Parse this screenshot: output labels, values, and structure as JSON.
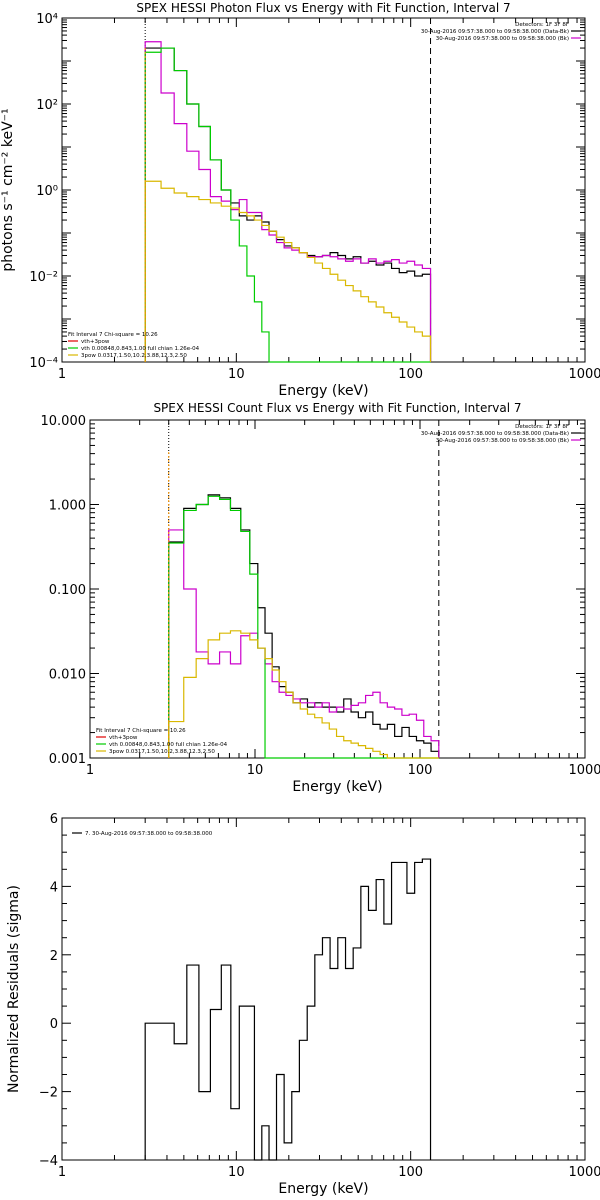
{
  "colors": {
    "black": "#000000",
    "red": "#e00000",
    "green": "#00cc00",
    "magenta": "#cc00cc",
    "yellow": "#d9b800",
    "orange_line": "#ff9900"
  },
  "chart_data": [
    {
      "type": "line",
      "title": "SPEX HESSI Photon Flux vs Energy with Fit Function, Interval 7",
      "xlabel": "Energy (keV)",
      "ylabel": "photons s⁻¹ cm⁻² keV⁻¹",
      "xscale": "log",
      "yscale": "log",
      "xlim": [
        1,
        1000
      ],
      "ylim": [
        0.0001,
        10000
      ],
      "xticks": [
        1,
        10,
        100,
        1000
      ],
      "xticklabels": [
        "1",
        "10",
        "100",
        "1000"
      ],
      "yticks": [
        0.0001,
        0.01,
        1,
        100,
        10000
      ],
      "yticklabels": [
        "10⁻⁴",
        "10⁻²",
        "10⁰",
        "10²",
        "10⁴"
      ],
      "vlines": [
        {
          "x": 3,
          "style": "dotted"
        },
        {
          "x": 130,
          "style": "dashed"
        }
      ],
      "legend_top": [
        "Detectors: 1F 3F 8F",
        "30-Aug-2016 09:57:38.000 to 09:58:38.000 (Data-Bk)",
        "30-Aug-2016 09:57:38.000 to 09:58:38.000 (Bk)"
      ],
      "legend_bottom": [
        "Fit Interval 7   Chi-square = 10.26",
        "vth+3pow",
        "vth 0.00848,0.843,1.00  full chian 1.26e-04",
        "3pow 0.0317,1.50,10.2,3.88,12.3,2.50"
      ],
      "edges": [
        3,
        3.7,
        4.4,
        5.2,
        6.1,
        7.1,
        8.2,
        9.3,
        10.4,
        11.5,
        12.7,
        14.0,
        15.4,
        17.0,
        18.8,
        20.8,
        23.0,
        25.5,
        28.2,
        31.2,
        34.5,
        38.2,
        42.3,
        46.8,
        51.8,
        57.3,
        63.4,
        70.2,
        77.7,
        86.0,
        95.2,
        105.4,
        116.7,
        130.0
      ],
      "series": [
        {
          "color_key": "black",
          "values": [
            2000,
            2000,
            600,
            100,
            30,
            5,
            1.0,
            0.5,
            0.25,
            0.2,
            0.25,
            0.18,
            0.11,
            0.07,
            0.05,
            0.045,
            0.035,
            0.03,
            0.028,
            0.03,
            0.035,
            0.03,
            0.025,
            0.028,
            0.02,
            0.022,
            0.018,
            0.02,
            0.015,
            0.012,
            0.013,
            0.01,
            0.011
          ]
        },
        {
          "color_key": "magenta",
          "values": [
            2800,
            180,
            35,
            8,
            3,
            0.7,
            0.55,
            0.35,
            0.6,
            0.3,
            0.3,
            0.12,
            0.09,
            0.06,
            0.045,
            0.04,
            0.035,
            0.028,
            0.028,
            0.03,
            0.028,
            0.025,
            0.022,
            0.025,
            0.02,
            0.025,
            0.02,
            0.022,
            0.024,
            0.02,
            0.022,
            0.018,
            0.015
          ]
        },
        {
          "color_key": "green",
          "values": [
            1600,
            2000,
            600,
            100,
            30,
            5,
            1.0,
            0.2,
            0.05,
            0.01,
            0.0025,
            0.0005,
            0.0001,
            0.0001,
            0.0001,
            0.0001,
            0.0001,
            0.0001,
            0.0001,
            0.0001,
            0.0001,
            0.0001,
            0.0001,
            0.0001,
            0.0001,
            0.0001,
            0.0001,
            0.0001,
            0.0001,
            0.0001,
            0.0001,
            0.0001,
            0.0001
          ]
        },
        {
          "color_key": "yellow",
          "values": [
            1.6,
            1.1,
            0.85,
            0.7,
            0.6,
            0.5,
            0.42,
            0.38,
            0.3,
            0.25,
            0.2,
            0.15,
            0.11,
            0.08,
            0.06,
            0.045,
            0.035,
            0.027,
            0.02,
            0.015,
            0.011,
            0.008,
            0.006,
            0.0045,
            0.0033,
            0.0025,
            0.0019,
            0.0014,
            0.0011,
            0.00085,
            0.00065,
            0.0005,
            0.0004
          ]
        }
      ]
    },
    {
      "type": "line",
      "title": "SPEX HESSI Count Flux vs Energy with Fit Function, Interval 7",
      "xlabel": "Energy (keV)",
      "ylabel": "",
      "xscale": "log",
      "yscale": "log",
      "xlim": [
        1,
        1000
      ],
      "ylim": [
        0.001,
        10
      ],
      "xticks": [
        1,
        10,
        100,
        1000
      ],
      "xticklabels": [
        "1",
        "10",
        "100",
        "1000"
      ],
      "yticks": [
        0.001,
        0.01,
        0.1,
        1,
        10
      ],
      "yticklabels": [
        "0.001",
        "0.010",
        "0.100",
        "1.000",
        "10.000"
      ],
      "vlines": [
        {
          "x": 3,
          "style": "dotted"
        },
        {
          "x": 130,
          "style": "dashed"
        }
      ],
      "legend_top": [
        "Detectors: 1F 3F 8F",
        "30-Aug-2016 09:57:38.000 to 09:58:38.000 (Data-Bk)",
        "30-Aug-2016 09:57:38.000 to 09:58:38.000 (Bk)"
      ],
      "legend_bottom": [
        "Fit Interval 7   Chi-square = 10.26",
        "vth+3pow",
        "vth 0.00848,0.843,1.00  full chian 1.26e-04",
        "3pow 0.0317,1.50,10.2,3.88,12.3,2.50"
      ],
      "edges": [
        3,
        3.7,
        4.4,
        5.2,
        6.1,
        7.1,
        8.2,
        9.3,
        10.4,
        11.5,
        12.7,
        14.0,
        15.4,
        17.0,
        18.8,
        20.8,
        23.0,
        25.5,
        28.2,
        31.2,
        34.5,
        38.2,
        42.3,
        46.8,
        51.8,
        57.3,
        63.4,
        70.2,
        77.7,
        86.0,
        95.2,
        105.4,
        116.7,
        130.0
      ],
      "series": [
        {
          "color_key": "black",
          "values": [
            0.36,
            0.9,
            1.0,
            1.3,
            1.2,
            0.9,
            0.5,
            0.2,
            0.06,
            0.03,
            0.012,
            0.007,
            0.006,
            0.0045,
            0.005,
            0.004,
            0.0045,
            0.004,
            0.004,
            0.0035,
            0.005,
            0.0035,
            0.003,
            0.0035,
            0.0025,
            0.0022,
            0.0025,
            0.0018,
            0.0023,
            0.0018,
            0.0016,
            0.0015,
            0.0012
          ]
        },
        {
          "color_key": "magenta",
          "values": [
            0.5,
            0.1,
            0.018,
            0.013,
            0.018,
            0.013,
            0.028,
            0.03,
            0.02,
            0.013,
            0.008,
            0.006,
            0.0055,
            0.005,
            0.0045,
            0.0045,
            0.004,
            0.0045,
            0.0035,
            0.004,
            0.0038,
            0.0042,
            0.0045,
            0.0055,
            0.006,
            0.0045,
            0.004,
            0.0038,
            0.0032,
            0.0033,
            0.0028,
            0.0018,
            0.0016
          ]
        },
        {
          "color_key": "green",
          "values": [
            0.35,
            0.85,
            1.0,
            1.25,
            1.15,
            0.85,
            0.48,
            0.15,
            0.02,
            0.001,
            0.001,
            0.001,
            0.001,
            0.001,
            0.001,
            0.001,
            0.001,
            0.001,
            0.001,
            0.001,
            0.001,
            0.001,
            0.001,
            0.001,
            0.001,
            0.001,
            0.001,
            0.001,
            0.001,
            0.001,
            0.001,
            0.001,
            0.001
          ]
        },
        {
          "color_key": "yellow",
          "values": [
            0.0027,
            0.009,
            0.015,
            0.025,
            0.03,
            0.032,
            0.03,
            0.025,
            0.02,
            0.015,
            0.011,
            0.008,
            0.006,
            0.0045,
            0.0038,
            0.0033,
            0.003,
            0.0026,
            0.0022,
            0.0018,
            0.0016,
            0.0015,
            0.0014,
            0.0013,
            0.0012,
            0.0011,
            0.001,
            0.001,
            0.001,
            0.001,
            0.001,
            0.001,
            0.001
          ]
        }
      ]
    },
    {
      "type": "line",
      "title": "",
      "xlabel": "Energy (keV)",
      "ylabel": "Normalized Residuals (sigma)",
      "xscale": "log",
      "yscale": "linear",
      "xlim": [
        1,
        1000
      ],
      "ylim": [
        -4,
        6
      ],
      "xticks": [
        1,
        10,
        100,
        1000
      ],
      "xticklabels": [
        "1",
        "10",
        "100",
        "1000"
      ],
      "yticks": [
        -4,
        -2,
        0,
        2,
        4,
        6
      ],
      "yticklabels": [
        "−4",
        "−2",
        "0",
        "2",
        "4",
        "6"
      ],
      "legend_top": [
        "7. 30-Aug-2016 09:57:38.000 to 09:58:38.000"
      ],
      "edges": [
        3,
        3.7,
        4.4,
        5.2,
        6.1,
        7.1,
        8.2,
        9.3,
        10.4,
        11.5,
        12.7,
        14.0,
        15.4,
        17.0,
        18.8,
        20.8,
        23.0,
        25.5,
        28.2,
        31.2,
        34.5,
        38.2,
        42.3,
        46.8,
        51.8,
        57.3,
        63.4,
        70.2,
        77.7,
        86.0,
        95.2,
        105.4,
        116.7,
        130.0
      ],
      "series": [
        {
          "color_key": "black",
          "values": [
            0.0,
            0.0,
            -0.6,
            1.7,
            -2.0,
            0.4,
            1.7,
            -2.5,
            0.5,
            0.5,
            -4.0,
            -3.0,
            -4.0,
            -1.5,
            -3.5,
            -2.0,
            -0.5,
            0.5,
            2.0,
            2.5,
            1.6,
            2.5,
            1.6,
            2.2,
            4.0,
            3.3,
            4.2,
            2.9,
            4.7,
            4.7,
            3.8,
            4.7,
            4.8
          ]
        }
      ]
    }
  ]
}
